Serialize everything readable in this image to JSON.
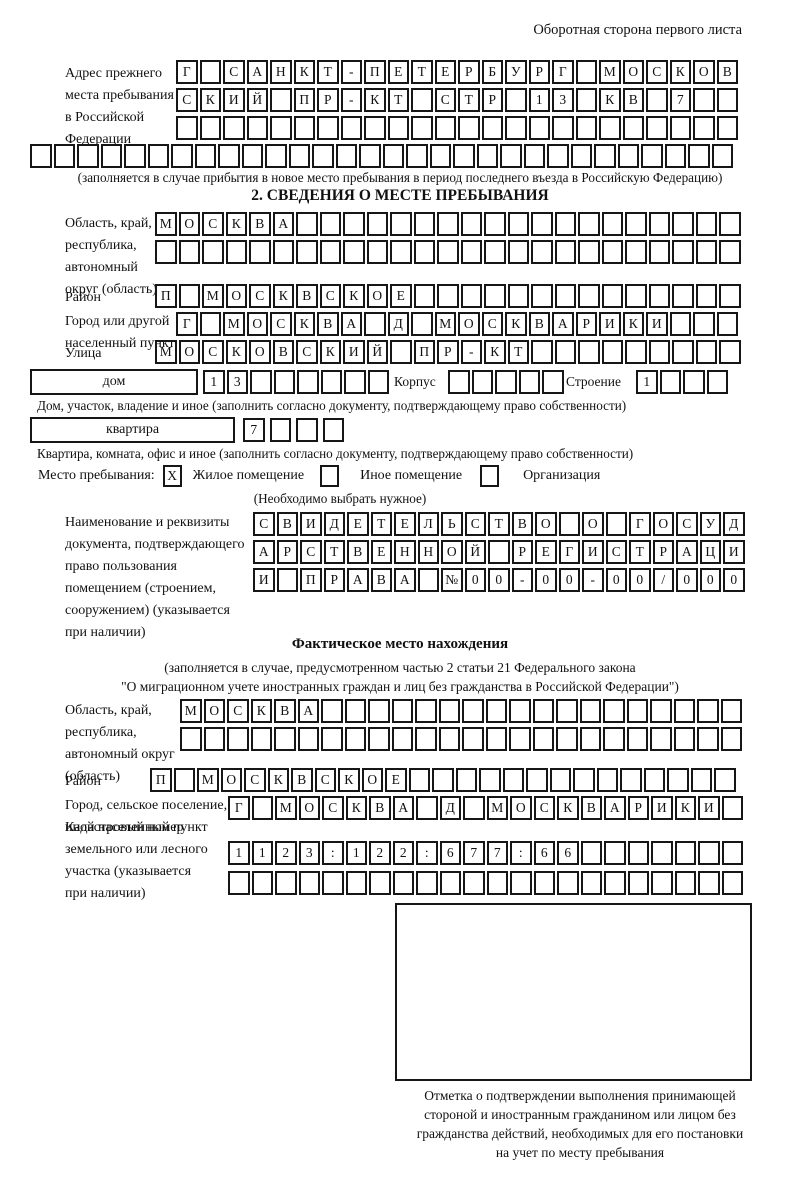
{
  "colors": {
    "ink": "#161616",
    "background": "#ffffff"
  },
  "page": {
    "corner_note": "Оборотная сторона первого листа"
  },
  "prev_address": {
    "label": "Адрес прежнего\nместа пребывания\nв Российской\nФедерации",
    "rows": [
      [
        "Г",
        "",
        "С",
        "А",
        "Н",
        "К",
        "Т",
        "-",
        "П",
        "Е",
        "Т",
        "Е",
        "Р",
        "Б",
        "У",
        "Р",
        "Г",
        "",
        "М",
        "О",
        "С",
        "К",
        "О",
        "В"
      ],
      [
        "С",
        "К",
        "И",
        "Й",
        "",
        "П",
        "Р",
        "-",
        "К",
        "Т",
        "",
        "С",
        "Т",
        "Р",
        "",
        "1",
        "3",
        "",
        "К",
        "В",
        "",
        "7",
        "",
        ""
      ],
      [
        "",
        "",
        "",
        "",
        "",
        "",
        "",
        "",
        "",
        "",
        "",
        "",
        "",
        "",
        "",
        "",
        "",
        "",
        "",
        "",
        "",
        "",
        "",
        ""
      ],
      [
        "",
        "",
        "",
        "",
        "",
        "",
        "",
        "",
        "",
        "",
        "",
        "",
        "",
        "",
        "",
        "",
        "",
        "",
        "",
        "",
        "",
        "",
        "",
        "",
        "",
        "",
        "",
        "",
        "",
        ""
      ]
    ],
    "note": "(заполняется в случае прибытия в новое место пребывания в период последнего въезда в Российскую Федерацию)"
  },
  "section2": {
    "title": "2. СВЕДЕНИЯ О МЕСТЕ ПРЕБЫВАНИЯ",
    "region": {
      "label": "Область, край,\nреспублика,\nавтономный\nокруг (область)",
      "rows": [
        [
          "М",
          "О",
          "С",
          "К",
          "В",
          "А",
          "",
          "",
          "",
          "",
          "",
          "",
          "",
          "",
          "",
          "",
          "",
          "",
          "",
          "",
          "",
          "",
          "",
          "",
          ""
        ],
        [
          "",
          "",
          "",
          "",
          "",
          "",
          "",
          "",
          "",
          "",
          "",
          "",
          "",
          "",
          "",
          "",
          "",
          "",
          "",
          "",
          "",
          "",
          "",
          "",
          ""
        ]
      ]
    },
    "district": {
      "label": "Район",
      "row": [
        "П",
        "",
        "М",
        "О",
        "С",
        "К",
        "В",
        "С",
        "К",
        "О",
        "Е",
        "",
        "",
        "",
        "",
        "",
        "",
        "",
        "",
        "",
        "",
        "",
        "",
        "",
        ""
      ]
    },
    "city": {
      "label": "Город или другой\nнаселенный пункт",
      "row": [
        "Г",
        "",
        "М",
        "О",
        "С",
        "К",
        "В",
        "А",
        "",
        "Д",
        "",
        "М",
        "О",
        "С",
        "К",
        "В",
        "А",
        "Р",
        "И",
        "К",
        "И",
        "",
        "",
        ""
      ]
    },
    "street": {
      "label": "Улица",
      "row": [
        "М",
        "О",
        "С",
        "К",
        "О",
        "В",
        "С",
        "К",
        "И",
        "Й",
        "",
        "П",
        "Р",
        "-",
        "К",
        "Т",
        "",
        "",
        "",
        "",
        "",
        "",
        "",
        "",
        ""
      ]
    },
    "house": {
      "box_label": "дом",
      "cells": [
        "1",
        "3",
        "",
        "",
        "",
        "",
        "",
        ""
      ],
      "korpus_label": "Корпус",
      "korpus_cells": [
        "",
        "",
        "",
        "",
        ""
      ],
      "stroenie_label": "Строение",
      "stroenie_cells": [
        "1",
        "",
        "",
        ""
      ]
    },
    "house_note": "Дом, участок, владение и иное (заполнить согласно документу, подтверждающему право собственности)",
    "apartment": {
      "box_label": "квартира",
      "cells": [
        "7",
        "",
        "",
        ""
      ]
    },
    "apartment_note": "Квартира, комната, офис и иное (заполнить согласно документу, подтверждающему право собственности)",
    "stay_type": {
      "label": "Место пребывания:",
      "options": [
        {
          "mark": "X",
          "label": "Жилое помещение"
        },
        {
          "mark": "",
          "label": "Иное помещение"
        },
        {
          "mark": "",
          "label": "Организация"
        }
      ],
      "note": "(Необходимо выбрать нужное)"
    },
    "document": {
      "label": "Наименование и реквизиты\nдокумента, подтверждающего\nправо пользования\nпомещением (строением,\nсооружением) (указывается\nпри наличии)",
      "rows": [
        [
          "С",
          "В",
          "И",
          "Д",
          "Е",
          "Т",
          "Е",
          "Л",
          "Ь",
          "С",
          "Т",
          "В",
          "О",
          "",
          "О",
          "",
          "Г",
          "О",
          "С",
          "У",
          "Д"
        ],
        [
          "А",
          "Р",
          "С",
          "Т",
          "В",
          "Е",
          "Н",
          "Н",
          "О",
          "Й",
          "",
          "Р",
          "Е",
          "Г",
          "И",
          "С",
          "Т",
          "Р",
          "А",
          "Ц",
          "И"
        ],
        [
          "И",
          "",
          "П",
          "Р",
          "А",
          "В",
          "А",
          "",
          "№",
          "0",
          "0",
          "-",
          "0",
          "0",
          "-",
          "0",
          "0",
          "/",
          "0",
          "0",
          "0"
        ]
      ]
    }
  },
  "actual_location": {
    "title": "Фактическое место нахождения",
    "note_line1": "(заполняется в случае, предусмотренном частью 2 статьи 21 Федерального закона",
    "note_line2": "\"О миграционном учете иностранных граждан и лиц без гражданства в Российской Федерации\")",
    "region": {
      "label": "Область, край,\nреспублика,\nавтономный округ\n(область)",
      "rows": [
        [
          "М",
          "О",
          "С",
          "К",
          "В",
          "А",
          "",
          "",
          "",
          "",
          "",
          "",
          "",
          "",
          "",
          "",
          "",
          "",
          "",
          "",
          "",
          "",
          "",
          ""
        ],
        [
          "",
          "",
          "",
          "",
          "",
          "",
          "",
          "",
          "",
          "",
          "",
          "",
          "",
          "",
          "",
          "",
          "",
          "",
          "",
          "",
          "",
          "",
          "",
          ""
        ]
      ]
    },
    "district": {
      "label": "Район",
      "row": [
        "П",
        "",
        "М",
        "О",
        "С",
        "К",
        "В",
        "С",
        "К",
        "О",
        "Е",
        "",
        "",
        "",
        "",
        "",
        "",
        "",
        "",
        "",
        "",
        "",
        "",
        "",
        ""
      ]
    },
    "city": {
      "label": "Город, сельское поселение,\nиной населенный пункт",
      "row": [
        "Г",
        "",
        "М",
        "О",
        "С",
        "К",
        "В",
        "А",
        "",
        "Д",
        "",
        "М",
        "О",
        "С",
        "К",
        "В",
        "А",
        "Р",
        "И",
        "К",
        "И",
        ""
      ]
    },
    "cadastral": {
      "label": "Кадастровый номер\nземельного или лесного\nучастка (указывается\nпри наличии)",
      "rows": [
        [
          "1",
          "1",
          "2",
          "3",
          ":",
          "1",
          "2",
          "2",
          ":",
          "6",
          "7",
          "7",
          ":",
          "6",
          "6",
          "",
          "",
          "",
          "",
          "",
          "",
          ""
        ],
        [
          "",
          "",
          "",
          "",
          "",
          "",
          "",
          "",
          "",
          "",
          "",
          "",
          "",
          "",
          "",
          "",
          "",
          "",
          "",
          "",
          "",
          ""
        ]
      ]
    },
    "mark_box_note": "Отметка о подтверждении выполнения принимающей\nстороной и иностранным гражданином или лицом без\nгражданства действий, необходимых для его постановки\nна учет по месту пребывания"
  }
}
